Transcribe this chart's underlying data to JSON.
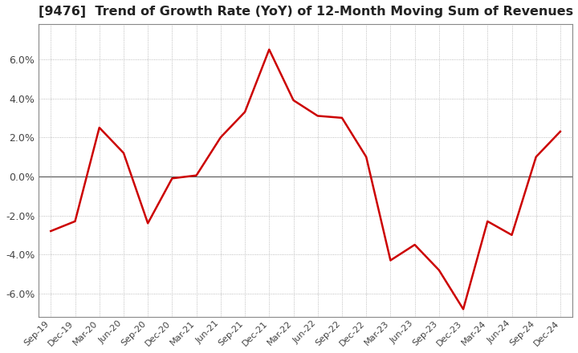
{
  "title": "[9476]  Trend of Growth Rate (YoY) of 12-Month Moving Sum of Revenues",
  "title_fontsize": 11.5,
  "line_color": "#cc0000",
  "background_color": "#ffffff",
  "grid_color": "#aaaaaa",
  "ylim": [
    -7.2,
    7.8
  ],
  "yticks": [
    -6.0,
    -4.0,
    -2.0,
    0.0,
    2.0,
    4.0,
    6.0
  ],
  "dates": [
    "Sep-19",
    "Dec-19",
    "Mar-20",
    "Jun-20",
    "Sep-20",
    "Dec-20",
    "Mar-21",
    "Jun-21",
    "Sep-21",
    "Dec-21",
    "Mar-22",
    "Jun-22",
    "Sep-22",
    "Dec-22",
    "Mar-23",
    "Jun-23",
    "Sep-23",
    "Dec-23",
    "Mar-24",
    "Jun-24",
    "Sep-24",
    "Dec-24"
  ],
  "values": [
    -2.8,
    -2.3,
    2.5,
    1.2,
    -2.4,
    -0.1,
    0.05,
    2.0,
    3.3,
    6.5,
    3.9,
    3.1,
    3.0,
    1.0,
    -4.3,
    -3.5,
    -4.8,
    -6.8,
    -2.3,
    -3.0,
    1.0,
    2.3
  ],
  "zero_line_color": "#555555",
  "spine_color": "#888888",
  "tick_label_color": "#444444",
  "title_color": "#222222"
}
